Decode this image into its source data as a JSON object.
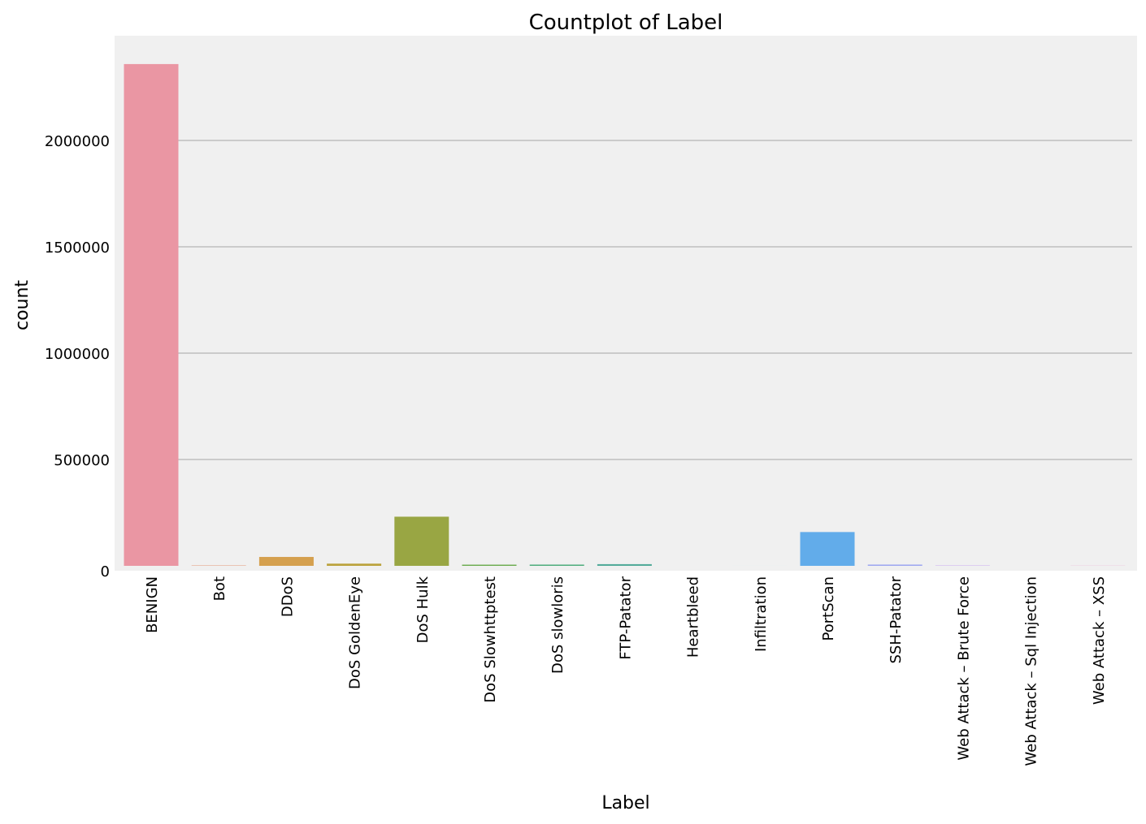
{
  "chart_data": {
    "type": "bar",
    "title": "Countplot of Label",
    "xlabel": "Label",
    "ylabel": "count",
    "categories": [
      "BENIGN",
      "Bot",
      "DDoS",
      "DoS GoldenEye",
      "DoS Hulk",
      "DoS Slowhttptest",
      "DoS slowloris",
      "FTP-Patator",
      "Heartbleed",
      "Infiltration",
      "PortScan",
      "SSH-Patator",
      "Web Attack – Brute Force",
      "Web Attack – Sql Injection",
      "Web Attack – XSS"
    ],
    "values": [
      2359087,
      1966,
      41835,
      10293,
      231072,
      5499,
      5796,
      7938,
      11,
      36,
      158930,
      5897,
      1507,
      21,
      652
    ],
    "colors": [
      "#ea96a3",
      "#e59c7b",
      "#d5a04e",
      "#bba23c",
      "#99a643",
      "#6bab4e",
      "#4fad7c",
      "#53ab9a",
      "#55aaab",
      "#58a9bd",
      "#62acea",
      "#9ea7f0",
      "#c49bf0",
      "#e58fe2",
      "#e993c0"
    ],
    "ylim": [
      0,
      2485000
    ],
    "yticks": [
      0,
      500000,
      1000000,
      1500000,
      2000000
    ],
    "ytick_labels": [
      "0",
      "500000",
      "1000000",
      "1500000",
      "2000000"
    ],
    "grid": "horizontal",
    "style": {
      "plot_background": "#f0f0f0",
      "grid_color": "#cbcbcb"
    }
  }
}
